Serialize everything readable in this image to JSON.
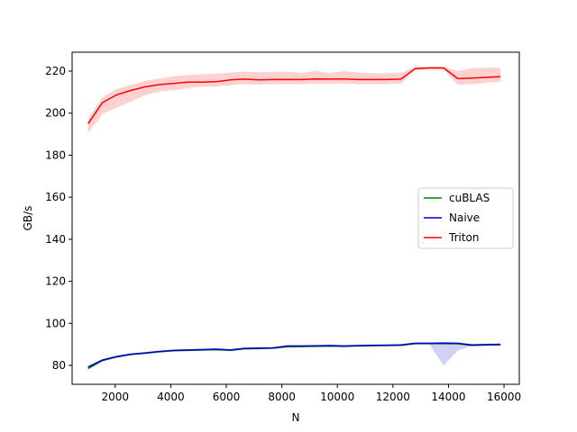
{
  "chart_data": {
    "type": "line",
    "title": "",
    "xlabel": "N",
    "ylabel": "GB/s",
    "xlim": [
      450,
      16550
    ],
    "ylim": [
      71,
      229
    ],
    "xticks": [
      2000,
      4000,
      6000,
      8000,
      10000,
      12000,
      14000,
      16000
    ],
    "yticks": [
      80,
      100,
      120,
      140,
      160,
      180,
      200,
      220
    ],
    "grid": false,
    "legend_position": "center-right",
    "x": [
      1024,
      1536,
      2048,
      2560,
      3072,
      3584,
      4096,
      4608,
      5120,
      5632,
      6144,
      6656,
      7168,
      7680,
      8192,
      8704,
      9216,
      9728,
      10240,
      10752,
      11264,
      11776,
      12288,
      12800,
      13312,
      13824,
      14336,
      14848,
      15360,
      15872
    ],
    "series": [
      {
        "name": "cuBLAS",
        "color": "#008000",
        "values": [
          78.5,
          82.3,
          84.0,
          85.2,
          85.8,
          86.5,
          87.0,
          87.2,
          87.3,
          87.5,
          87.2,
          87.9,
          88.0,
          88.2,
          88.9,
          89.0,
          89.1,
          89.2,
          89.1,
          89.3,
          89.4,
          89.5,
          89.6,
          90.4,
          90.4,
          90.4,
          90.3,
          89.5,
          89.7,
          89.8
        ],
        "band_low": [
          78.0,
          81.8,
          83.5,
          84.7,
          85.3,
          86.0,
          86.5,
          86.7,
          86.8,
          87.0,
          86.7,
          87.4,
          87.5,
          87.7,
          88.4,
          88.5,
          88.6,
          88.7,
          88.6,
          88.8,
          88.9,
          89.0,
          89.1,
          89.9,
          89.9,
          89.9,
          89.8,
          89.0,
          89.2,
          89.3
        ],
        "band_high": [
          79.0,
          82.8,
          84.5,
          85.7,
          86.3,
          87.0,
          87.5,
          87.7,
          87.8,
          88.0,
          87.7,
          88.4,
          88.5,
          88.7,
          89.4,
          89.5,
          89.6,
          89.7,
          89.6,
          89.8,
          89.9,
          90.0,
          90.1,
          90.9,
          90.9,
          90.9,
          90.8,
          90.0,
          90.2,
          90.3
        ]
      },
      {
        "name": "Naive",
        "color": "#0000cc",
        "values": [
          79.2,
          82.5,
          84.2,
          85.3,
          85.9,
          86.6,
          87.1,
          87.3,
          87.5,
          87.7,
          87.3,
          88.1,
          88.2,
          88.3,
          89.2,
          89.2,
          89.3,
          89.4,
          89.2,
          89.4,
          89.5,
          89.6,
          89.7,
          90.5,
          90.5,
          90.6,
          90.5,
          89.7,
          89.9,
          90.0
        ],
        "band_low": [
          78.7,
          82.0,
          83.7,
          84.8,
          85.4,
          86.1,
          86.6,
          86.8,
          87.0,
          87.2,
          86.8,
          87.6,
          87.7,
          87.8,
          88.7,
          88.7,
          88.8,
          88.9,
          88.7,
          88.9,
          89.0,
          89.1,
          89.2,
          90.0,
          90.0,
          80.0,
          87.0,
          89.2,
          89.4,
          89.5
        ],
        "band_high": [
          79.7,
          83.0,
          84.7,
          85.8,
          86.4,
          87.1,
          87.6,
          87.8,
          88.0,
          88.2,
          87.8,
          88.6,
          88.7,
          88.8,
          89.7,
          89.7,
          89.8,
          89.9,
          89.7,
          89.9,
          90.0,
          90.1,
          90.2,
          91.0,
          91.0,
          91.1,
          91.0,
          90.2,
          90.4,
          90.5
        ]
      },
      {
        "name": "Triton",
        "color": "#ff0000",
        "values": [
          195.0,
          205.0,
          208.7,
          210.8,
          212.5,
          213.6,
          214.1,
          214.8,
          214.8,
          215.0,
          215.8,
          216.2,
          215.8,
          216.0,
          216.0,
          216.0,
          216.3,
          216.2,
          216.3,
          216.0,
          216.0,
          216.0,
          216.2,
          221.2,
          221.5,
          221.5,
          216.4,
          216.7,
          217.0,
          217.4
        ],
        "band_low": [
          190.5,
          199.5,
          202.5,
          205.5,
          208.5,
          210.3,
          211.0,
          212.0,
          212.5,
          212.7,
          213.3,
          213.8,
          213.5,
          213.8,
          213.8,
          213.8,
          214.2,
          214.0,
          214.2,
          213.8,
          213.8,
          213.8,
          214.0,
          220.5,
          220.8,
          220.8,
          213.5,
          213.8,
          214.5,
          215.0
        ],
        "band_high": [
          197.5,
          207.5,
          211.5,
          213.5,
          215.3,
          216.5,
          217.5,
          218.2,
          218.5,
          218.8,
          219.3,
          219.8,
          219.5,
          219.7,
          219.8,
          219.0,
          220.2,
          219.0,
          220.0,
          219.3,
          219.0,
          219.0,
          219.3,
          222.0,
          222.2,
          222.2,
          220.0,
          221.5,
          221.6,
          221.6
        ]
      }
    ]
  }
}
